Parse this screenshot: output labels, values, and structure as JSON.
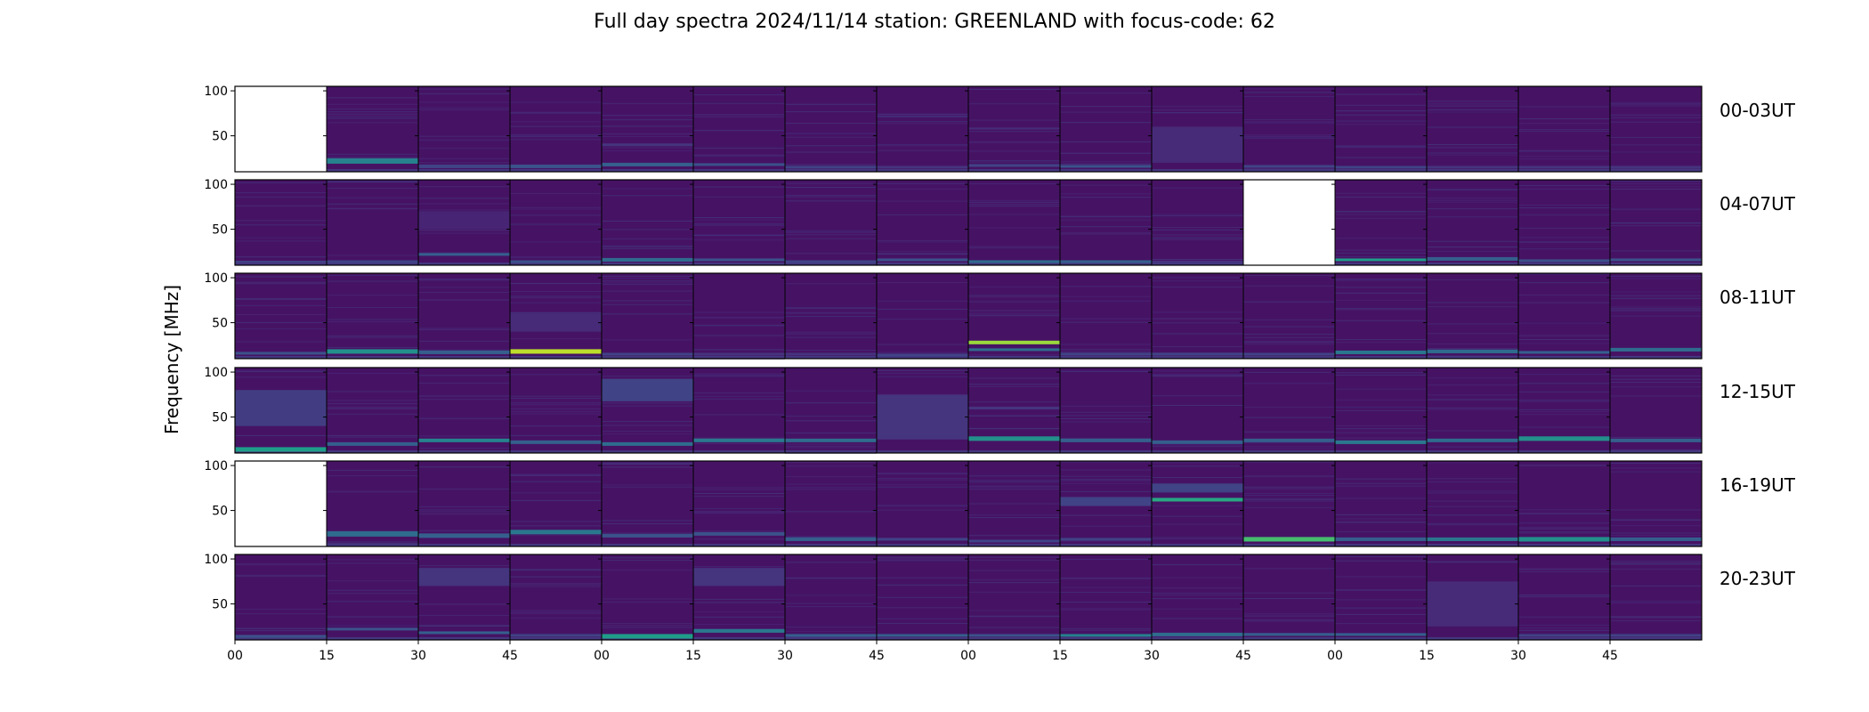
{
  "figure": {
    "title": "Full day spectra 2024/11/14 station: GREENLAND with focus-code: 62"
  },
  "chart_data": {
    "type": "heatmap",
    "title": "Full day spectra 2024/11/14 station: GREENLAND with focus-code: 62",
    "ylabel": "Frequency [MHz]",
    "xlabel": "",
    "colormap": "viridis",
    "ylim": [
      10,
      105
    ],
    "y_ticks": [
      "100",
      "50"
    ],
    "x_ticks": [
      "00",
      "15",
      "30",
      "45",
      "00",
      "15",
      "30",
      "45",
      "00",
      "15",
      "30",
      "45",
      "00",
      "15",
      "30",
      "45"
    ],
    "rows": [
      {
        "label": "00-03UT",
        "missing": [
          0
        ],
        "panels": [
          {
            "bands": []
          },
          {
            "bands": [
              {
                "f": 22,
                "w": 6,
                "s": 0.45
              }
            ]
          },
          {
            "bands": [
              {
                "f": 16,
                "w": 4,
                "s": 0.2
              }
            ]
          },
          {
            "bands": [
              {
                "f": 16,
                "w": 4,
                "s": 0.25
              }
            ]
          },
          {
            "bands": [
              {
                "f": 18,
                "w": 4,
                "s": 0.3
              },
              {
                "f": 40,
                "w": 3,
                "s": 0.15
              }
            ]
          },
          {
            "bands": [
              {
                "f": 18,
                "w": 3,
                "s": 0.25
              }
            ]
          },
          {
            "bands": [
              {
                "f": 15,
                "w": 3,
                "s": 0.2
              }
            ]
          },
          {
            "bands": [
              {
                "f": 15,
                "w": 3,
                "s": 0.15
              }
            ]
          },
          {
            "bands": [
              {
                "f": 17,
                "w": 3,
                "s": 0.2
              },
              {
                "f": 58,
                "w": 2,
                "s": 0.12
              }
            ]
          },
          {
            "bands": [
              {
                "f": 16,
                "w": 3,
                "s": 0.25
              }
            ]
          },
          {
            "bands": [
              {
                "f": 40,
                "w": 40,
                "s": 0.12
              }
            ]
          },
          {
            "bands": [
              {
                "f": 16,
                "w": 3,
                "s": 0.2
              }
            ]
          },
          {
            "bands": [
              {
                "f": 15,
                "w": 3,
                "s": 0.2
              }
            ]
          },
          {
            "bands": [
              {
                "f": 15,
                "w": 3,
                "s": 0.15
              }
            ]
          },
          {
            "bands": [
              {
                "f": 15,
                "w": 3,
                "s": 0.15
              }
            ]
          },
          {
            "bands": [
              {
                "f": 15,
                "w": 3,
                "s": 0.15
              }
            ]
          }
        ]
      },
      {
        "label": "04-07UT",
        "missing": [
          11
        ],
        "panels": [
          {
            "bands": [
              {
                "f": 14,
                "w": 2,
                "s": 0.2
              }
            ]
          },
          {
            "bands": [
              {
                "f": 14,
                "w": 3,
                "s": 0.2
              }
            ]
          },
          {
            "bands": [
              {
                "f": 22,
                "w": 3,
                "s": 0.3
              },
              {
                "f": 60,
                "w": 20,
                "s": 0.1
              }
            ]
          },
          {
            "bands": [
              {
                "f": 14,
                "w": 3,
                "s": 0.25
              }
            ]
          },
          {
            "bands": [
              {
                "f": 16,
                "w": 4,
                "s": 0.35
              }
            ]
          },
          {
            "bands": [
              {
                "f": 16,
                "w": 3,
                "s": 0.25
              }
            ]
          },
          {
            "bands": [
              {
                "f": 14,
                "w": 3,
                "s": 0.2
              }
            ]
          },
          {
            "bands": [
              {
                "f": 16,
                "w": 3,
                "s": 0.25
              }
            ]
          },
          {
            "bands": [
              {
                "f": 14,
                "w": 3,
                "s": 0.35
              }
            ]
          },
          {
            "bands": [
              {
                "f": 14,
                "w": 3,
                "s": 0.3
              }
            ]
          },
          {
            "bands": [
              {
                "f": 14,
                "w": 2,
                "s": 0.15
              }
            ]
          },
          {
            "bands": []
          },
          {
            "bands": [
              {
                "f": 16,
                "w": 3,
                "s": 0.55
              }
            ]
          },
          {
            "bands": [
              {
                "f": 17,
                "w": 4,
                "s": 0.3
              }
            ]
          },
          {
            "bands": [
              {
                "f": 15,
                "w": 3,
                "s": 0.25
              }
            ]
          },
          {
            "bands": [
              {
                "f": 16,
                "w": 3,
                "s": 0.25
              }
            ]
          }
        ]
      },
      {
        "label": "08-11UT",
        "missing": [],
        "panels": [
          {
            "bands": [
              {
                "f": 16,
                "w": 3,
                "s": 0.25
              }
            ]
          },
          {
            "bands": [
              {
                "f": 18,
                "w": 5,
                "s": 0.5
              }
            ]
          },
          {
            "bands": [
              {
                "f": 17,
                "w": 4,
                "s": 0.3
              }
            ]
          },
          {
            "bands": [
              {
                "f": 18,
                "w": 5,
                "s": 0.9
              },
              {
                "f": 50,
                "w": 20,
                "s": 0.12
              }
            ]
          },
          {
            "bands": [
              {
                "f": 15,
                "w": 3,
                "s": 0.2
              }
            ]
          },
          {
            "bands": [
              {
                "f": 15,
                "w": 3,
                "s": 0.15
              }
            ]
          },
          {
            "bands": [
              {
                "f": 15,
                "w": 3,
                "s": 0.15
              }
            ]
          },
          {
            "bands": [
              {
                "f": 14,
                "w": 3,
                "s": 0.2
              }
            ]
          },
          {
            "bands": [
              {
                "f": 28,
                "w": 4,
                "s": 0.85
              },
              {
                "f": 20,
                "w": 3,
                "s": 0.35
              }
            ]
          },
          {
            "bands": [
              {
                "f": 15,
                "w": 3,
                "s": 0.2
              }
            ]
          },
          {
            "bands": [
              {
                "f": 15,
                "w": 3,
                "s": 0.2
              }
            ]
          },
          {
            "bands": [
              {
                "f": 15,
                "w": 3,
                "s": 0.2
              }
            ]
          },
          {
            "bands": [
              {
                "f": 17,
                "w": 4,
                "s": 0.4
              }
            ]
          },
          {
            "bands": [
              {
                "f": 18,
                "w": 4,
                "s": 0.35
              }
            ]
          },
          {
            "bands": [
              {
                "f": 17,
                "w": 3,
                "s": 0.3
              }
            ]
          },
          {
            "bands": [
              {
                "f": 20,
                "w": 4,
                "s": 0.35
              }
            ]
          }
        ]
      },
      {
        "label": "12-15UT",
        "missing": [],
        "panels": [
          {
            "bands": [
              {
                "f": 14,
                "w": 5,
                "s": 0.55
              },
              {
                "f": 60,
                "w": 40,
                "s": 0.18
              }
            ]
          },
          {
            "bands": [
              {
                "f": 20,
                "w": 4,
                "s": 0.3
              }
            ]
          },
          {
            "bands": [
              {
                "f": 24,
                "w": 4,
                "s": 0.45
              }
            ]
          },
          {
            "bands": [
              {
                "f": 22,
                "w": 4,
                "s": 0.3
              }
            ]
          },
          {
            "bands": [
              {
                "f": 20,
                "w": 4,
                "s": 0.35
              },
              {
                "f": 80,
                "w": 25,
                "s": 0.2
              }
            ]
          },
          {
            "bands": [
              {
                "f": 24,
                "w": 4,
                "s": 0.4
              }
            ]
          },
          {
            "bands": [
              {
                "f": 24,
                "w": 4,
                "s": 0.35
              }
            ]
          },
          {
            "bands": [
              {
                "f": 50,
                "w": 50,
                "s": 0.15
              }
            ]
          },
          {
            "bands": [
              {
                "f": 26,
                "w": 5,
                "s": 0.5
              },
              {
                "f": 60,
                "w": 3,
                "s": 0.15
              }
            ]
          },
          {
            "bands": [
              {
                "f": 24,
                "w": 4,
                "s": 0.3
              }
            ]
          },
          {
            "bands": [
              {
                "f": 22,
                "w": 4,
                "s": 0.3
              }
            ]
          },
          {
            "bands": [
              {
                "f": 24,
                "w": 4,
                "s": 0.3
              }
            ]
          },
          {
            "bands": [
              {
                "f": 22,
                "w": 4,
                "s": 0.4
              }
            ]
          },
          {
            "bands": [
              {
                "f": 24,
                "w": 4,
                "s": 0.35
              }
            ]
          },
          {
            "bands": [
              {
                "f": 26,
                "w": 5,
                "s": 0.5
              }
            ]
          },
          {
            "bands": [
              {
                "f": 24,
                "w": 4,
                "s": 0.3
              }
            ]
          }
        ]
      },
      {
        "label": "16-19UT",
        "missing": [
          0
        ],
        "panels": [
          {
            "bands": []
          },
          {
            "bands": [
              {
                "f": 24,
                "w": 6,
                "s": 0.35
              }
            ]
          },
          {
            "bands": [
              {
                "f": 22,
                "w": 5,
                "s": 0.3
              }
            ]
          },
          {
            "bands": [
              {
                "f": 26,
                "w": 5,
                "s": 0.4
              }
            ]
          },
          {
            "bands": [
              {
                "f": 22,
                "w": 4,
                "s": 0.25
              }
            ]
          },
          {
            "bands": [
              {
                "f": 24,
                "w": 4,
                "s": 0.25
              }
            ]
          },
          {
            "bands": [
              {
                "f": 18,
                "w": 4,
                "s": 0.3
              }
            ]
          },
          {
            "bands": [
              {
                "f": 18,
                "w": 3,
                "s": 0.2
              }
            ]
          },
          {
            "bands": [
              {
                "f": 16,
                "w": 3,
                "s": 0.2
              }
            ]
          },
          {
            "bands": [
              {
                "f": 60,
                "w": 10,
                "s": 0.2
              },
              {
                "f": 18,
                "w": 3,
                "s": 0.2
              }
            ]
          },
          {
            "bands": [
              {
                "f": 62,
                "w": 4,
                "s": 0.6
              },
              {
                "f": 75,
                "w": 10,
                "s": 0.2
              }
            ]
          },
          {
            "bands": [
              {
                "f": 18,
                "w": 5,
                "s": 0.7
              }
            ]
          },
          {
            "bands": [
              {
                "f": 18,
                "w": 4,
                "s": 0.3
              }
            ]
          },
          {
            "bands": [
              {
                "f": 18,
                "w": 4,
                "s": 0.4
              }
            ]
          },
          {
            "bands": [
              {
                "f": 18,
                "w": 5,
                "s": 0.5
              }
            ]
          },
          {
            "bands": [
              {
                "f": 18,
                "w": 4,
                "s": 0.3
              }
            ]
          }
        ]
      },
      {
        "label": "20-23UT",
        "missing": [],
        "panels": [
          {
            "bands": [
              {
                "f": 14,
                "w": 3,
                "s": 0.25
              }
            ]
          },
          {
            "bands": [
              {
                "f": 22,
                "w": 3,
                "s": 0.25
              }
            ]
          },
          {
            "bands": [
              {
                "f": 18,
                "w": 3,
                "s": 0.3
              },
              {
                "f": 80,
                "w": 20,
                "s": 0.15
              }
            ]
          },
          {
            "bands": [
              {
                "f": 15,
                "w": 3,
                "s": 0.2
              }
            ]
          },
          {
            "bands": [
              {
                "f": 14,
                "w": 5,
                "s": 0.55
              }
            ]
          },
          {
            "bands": [
              {
                "f": 20,
                "w": 4,
                "s": 0.4
              },
              {
                "f": 80,
                "w": 20,
                "s": 0.15
              }
            ]
          },
          {
            "bands": [
              {
                "f": 15,
                "w": 3,
                "s": 0.3
              }
            ]
          },
          {
            "bands": [
              {
                "f": 15,
                "w": 3,
                "s": 0.3
              }
            ]
          },
          {
            "bands": [
              {
                "f": 15,
                "w": 3,
                "s": 0.25
              }
            ]
          },
          {
            "bands": [
              {
                "f": 15,
                "w": 3,
                "s": 0.45
              }
            ]
          },
          {
            "bands": [
              {
                "f": 16,
                "w": 4,
                "s": 0.35
              }
            ]
          },
          {
            "bands": [
              {
                "f": 16,
                "w": 3,
                "s": 0.3
              }
            ]
          },
          {
            "bands": [
              {
                "f": 16,
                "w": 3,
                "s": 0.3
              }
            ]
          },
          {
            "bands": [
              {
                "f": 50,
                "w": 50,
                "s": 0.12
              }
            ]
          },
          {
            "bands": [
              {
                "f": 15,
                "w": 3,
                "s": 0.2
              }
            ]
          },
          {
            "bands": [
              {
                "f": 15,
                "w": 3,
                "s": 0.2
              }
            ]
          }
        ]
      }
    ]
  }
}
